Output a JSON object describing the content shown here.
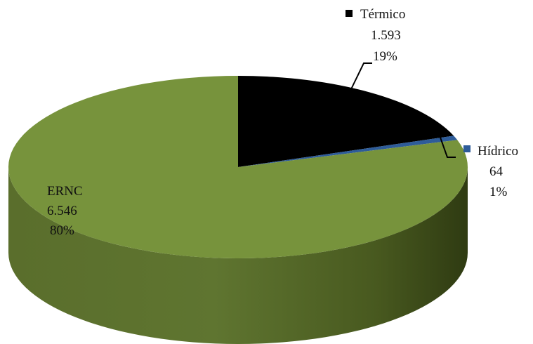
{
  "chart_data": {
    "type": "pie",
    "style": "3d",
    "categories": [
      "Térmico",
      "Hídrico",
      "ERNC"
    ],
    "values": [
      1593,
      64,
      6546
    ],
    "value_labels": [
      "1.593",
      "64",
      "6.546"
    ],
    "percent_labels": [
      "19%",
      "1%",
      "80%"
    ],
    "colors": [
      "#000000",
      "#2E5C99",
      "#77933C"
    ],
    "legend_marker_categories": [
      "Térmico",
      "Hídrico"
    ]
  }
}
